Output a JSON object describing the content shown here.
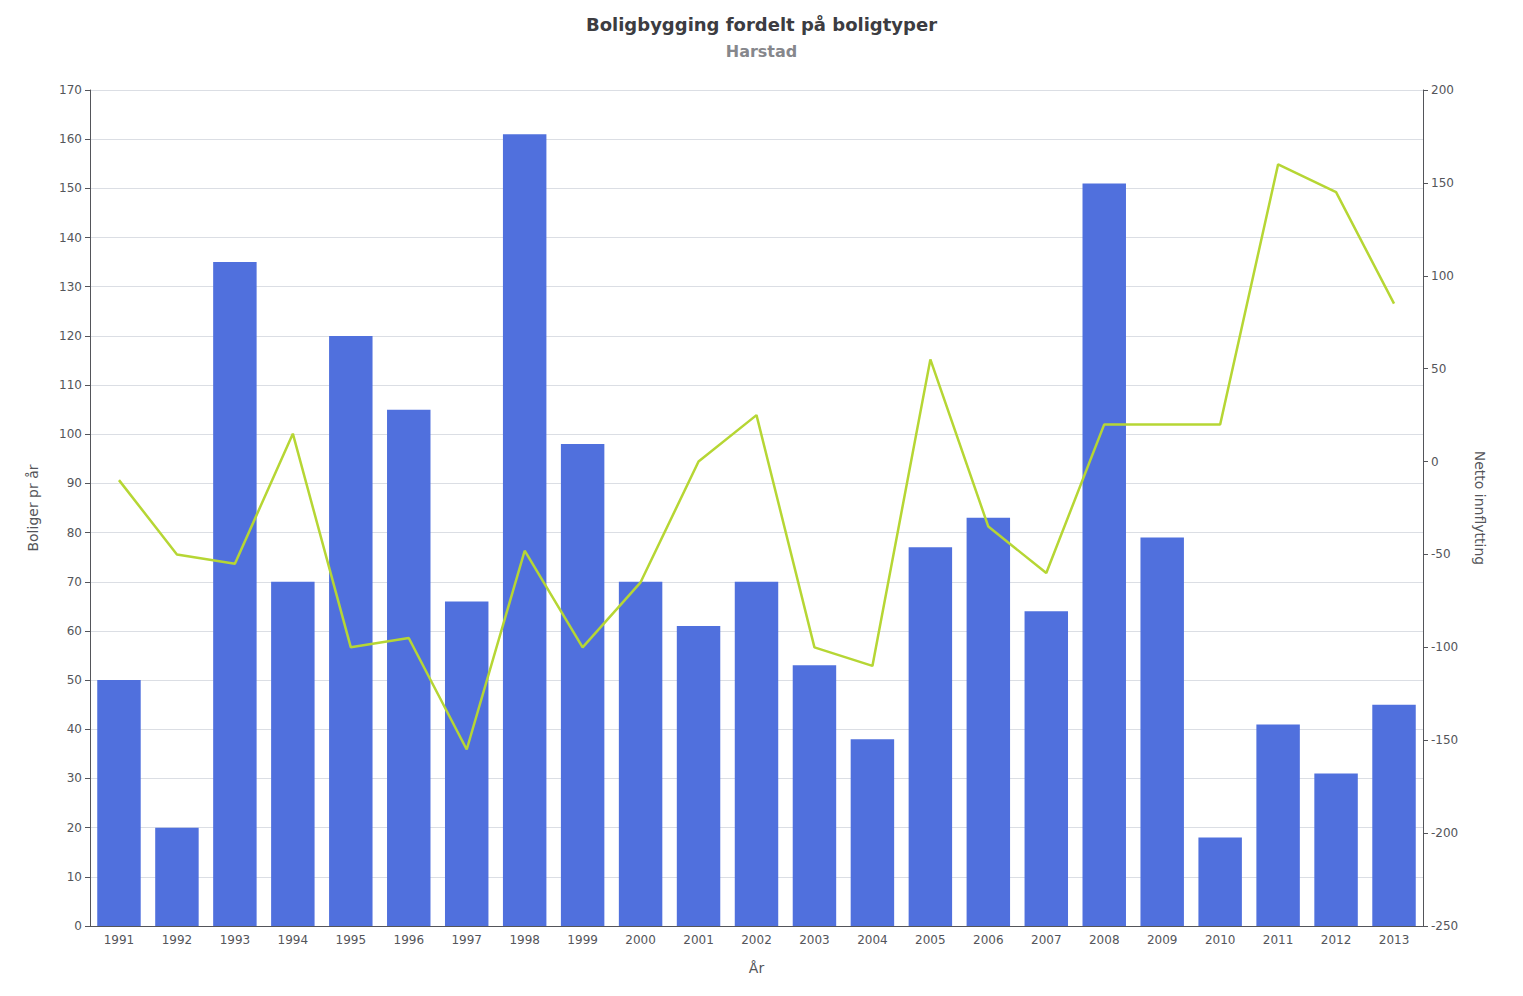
{
  "chart_data": {
    "type": "bar",
    "title": "Boligbygging fordelt på boligtyper",
    "subtitle": "Harstad",
    "xlabel": "År",
    "ylabel": "Boliger pr år",
    "y2label": "Netto innflytting",
    "categories": [
      "1991",
      "1992",
      "1993",
      "1994",
      "1995",
      "1996",
      "1997",
      "1998",
      "1999",
      "2000",
      "2001",
      "2002",
      "2003",
      "2004",
      "2005",
      "2006",
      "2007",
      "2008",
      "2009",
      "2010",
      "2011",
      "2012",
      "2013"
    ],
    "series": [
      {
        "type": "bar",
        "values": [
          50,
          20,
          135,
          70,
          120,
          105,
          66,
          161,
          98,
          70,
          61,
          70,
          53,
          38,
          77,
          83,
          64,
          151,
          79,
          18,
          41,
          31,
          45
        ]
      },
      {
        "type": "line",
        "axis": "y2",
        "values": [
          -10,
          -50,
          -55,
          15,
          -100,
          -95,
          -155,
          -48,
          -100,
          -65,
          0,
          25,
          -100,
          -110,
          55,
          -35,
          -60,
          20,
          20,
          20,
          160,
          145,
          85
        ]
      }
    ],
    "ylim": [
      0,
      170
    ],
    "yticks": [
      0,
      10,
      20,
      30,
      40,
      50,
      60,
      70,
      80,
      90,
      100,
      110,
      120,
      130,
      140,
      150,
      160,
      170
    ],
    "y2lim": [
      -250,
      200
    ],
    "y2ticks": [
      -250,
      -200,
      -150,
      -100,
      -50,
      0,
      50,
      100,
      150,
      200
    ],
    "grid": true
  }
}
